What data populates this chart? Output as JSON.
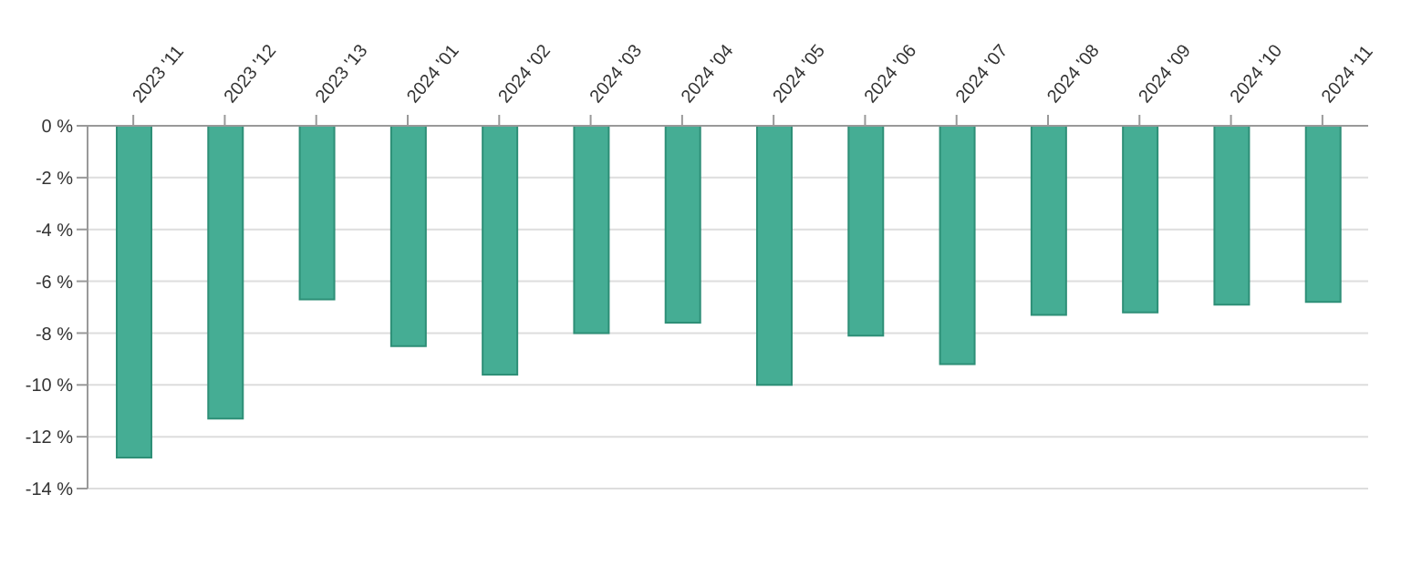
{
  "chart_data": {
    "type": "bar",
    "categories": [
      "2023 '11",
      "2023 '12",
      "2023 '13",
      "2024 '01",
      "2024 '02",
      "2024 '03",
      "2024 '04",
      "2024 '05",
      "2024 '06",
      "2024 '07",
      "2024 '08",
      "2024 '09",
      "2024 '10",
      "2024 '11"
    ],
    "values": [
      -12.8,
      -11.3,
      -6.7,
      -8.5,
      -9.6,
      -8.0,
      -7.6,
      -10.0,
      -8.1,
      -9.2,
      -7.3,
      -7.2,
      -6.9,
      -6.8
    ],
    "color": "#45ad94",
    "ylim": [
      -14,
      0
    ],
    "yticks": [
      {
        "value": 0,
        "label": "0 %"
      },
      {
        "value": -2,
        "label": "-2 %"
      },
      {
        "value": -4,
        "label": "-4 %"
      },
      {
        "value": -6,
        "label": "-6 %"
      },
      {
        "value": -8,
        "label": "-8 %"
      },
      {
        "value": -10,
        "label": "-10 %"
      },
      {
        "value": -12,
        "label": "-12 %"
      },
      {
        "value": -14,
        "label": "-14 %"
      }
    ],
    "grid": "y"
  }
}
